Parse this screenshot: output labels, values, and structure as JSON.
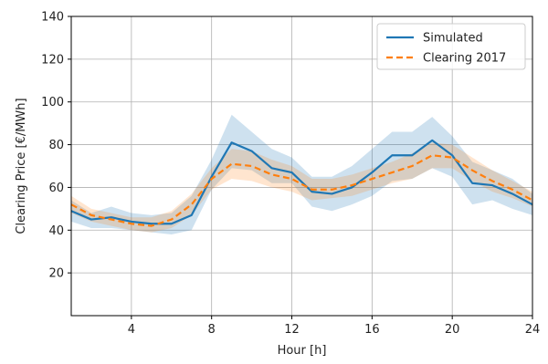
{
  "chart_data": {
    "type": "line",
    "title": "",
    "xlabel": "Hour [h]",
    "ylabel": "Clearing Price [€/MWh]",
    "xlim": [
      1,
      24
    ],
    "ylim": [
      0,
      140
    ],
    "xticks": [
      4,
      8,
      12,
      16,
      20,
      24
    ],
    "yticks": [
      20,
      40,
      60,
      80,
      100,
      120,
      140
    ],
    "grid": true,
    "legend_position": "top-right",
    "x": [
      1,
      2,
      3,
      4,
      5,
      6,
      7,
      8,
      9,
      10,
      11,
      12,
      13,
      14,
      15,
      16,
      17,
      18,
      19,
      20,
      21,
      22,
      23,
      24
    ],
    "series": [
      {
        "name": "Simulated",
        "color": "#1f77b4",
        "style": "solid",
        "values": [
          49,
          45,
          46,
          44,
          43,
          43,
          47,
          65,
          81,
          77,
          69,
          67,
          58,
          57,
          60,
          67,
          75,
          75,
          82,
          75,
          62,
          61,
          57,
          52
        ],
        "band_lower": [
          44,
          41,
          41,
          40,
          39,
          38,
          40,
          59,
          69,
          68,
          62,
          62,
          51,
          49,
          52,
          56,
          63,
          64,
          69,
          65,
          52,
          54,
          50,
          47
        ],
        "band_upper": [
          54,
          48,
          51,
          48,
          47,
          48,
          56,
          73,
          94,
          86,
          78,
          74,
          65,
          65,
          70,
          78,
          86,
          86,
          93,
          84,
          72,
          68,
          64,
          57
        ]
      },
      {
        "name": "Clearing 2017",
        "color": "#ff7f0e",
        "style": "dashed",
        "values": [
          52,
          47,
          45,
          43,
          42,
          45,
          52,
          64,
          71,
          70,
          66,
          64,
          59,
          59,
          61,
          64,
          67,
          70,
          75,
          74,
          68,
          63,
          59,
          54
        ],
        "band_lower": [
          48,
          44,
          42,
          40,
          39,
          41,
          47,
          59,
          64,
          63,
          60,
          58,
          54,
          55,
          56,
          59,
          62,
          64,
          69,
          69,
          63,
          58,
          55,
          51
        ],
        "band_upper": [
          56,
          50,
          48,
          46,
          46,
          49,
          57,
          69,
          78,
          77,
          73,
          70,
          64,
          64,
          66,
          69,
          72,
          76,
          81,
          80,
          74,
          68,
          63,
          58
        ]
      }
    ]
  }
}
